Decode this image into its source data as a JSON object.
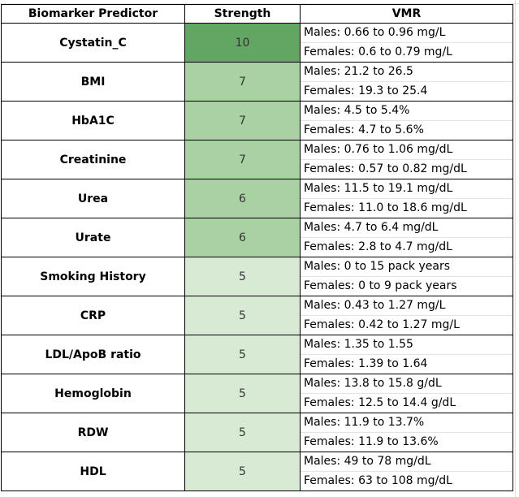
{
  "table": {
    "headers": {
      "predictor": "Biomarker Predictor",
      "strength": "Strength",
      "vmr": "VMR"
    },
    "rows": [
      {
        "predictor": "Cystatin_C",
        "strength": "10",
        "level": "high",
        "male": "Males: 0.66 to 0.96 mg/L",
        "female": "Females: 0.6 to 0.79 mg/L"
      },
      {
        "predictor": "BMI",
        "strength": "7",
        "level": "mid",
        "male": "Males: 21.2 to 26.5",
        "female": "Females: 19.3 to 25.4"
      },
      {
        "predictor": "HbA1C",
        "strength": "7",
        "level": "mid",
        "male": "Males: 4.5 to 5.4%",
        "female": "Females: 4.7 to 5.6%"
      },
      {
        "predictor": "Creatinine",
        "strength": "7",
        "level": "mid",
        "male": "Males: 0.76 to 1.06 mg/dL",
        "female": "Females: 0.57 to 0.82 mg/dL"
      },
      {
        "predictor": "Urea",
        "strength": "6",
        "level": "mid",
        "male": "Males: 11.5 to 19.1 mg/dL",
        "female": "Females: 11.0 to 18.6 mg/dL"
      },
      {
        "predictor": "Urate",
        "strength": "6",
        "level": "mid",
        "male": "Males: 4.7 to 6.4 mg/dL",
        "female": "Females: 2.8 to 4.7 mg/dL"
      },
      {
        "predictor": "Smoking History",
        "strength": "5",
        "level": "low",
        "male": "Males: 0 to 15 pack years",
        "female": "Females: 0 to 9 pack years"
      },
      {
        "predictor": "CRP",
        "strength": "5",
        "level": "low",
        "male": "Males: 0.43 to 1.27 mg/L",
        "female": "Females: 0.42 to 1.27 mg/L"
      },
      {
        "predictor": "LDL/ApoB ratio",
        "strength": "5",
        "level": "low",
        "male": "Males: 1.35 to 1.55",
        "female": "Females: 1.39 to 1.64"
      },
      {
        "predictor": "Hemoglobin",
        "strength": "5",
        "level": "low",
        "male": "Males: 13.8 to 15.8 g/dL",
        "female": "Females: 12.5 to 14.4 g/dL"
      },
      {
        "predictor": "RDW",
        "strength": "5",
        "level": "low",
        "male": "Males: 11.9 to 13.7%",
        "female": "Females: 11.9 to 13.6%"
      },
      {
        "predictor": "HDL",
        "strength": "5",
        "level": "low",
        "male": "Males: 49 to 78 mg/dL",
        "female": "Females: 63 to 108 mg/dL"
      }
    ]
  },
  "colors": {
    "strength_high": "#63a562",
    "strength_mid": "#a9d1a3",
    "strength_low": "#d8ead3",
    "border": "#000000",
    "gridline": "#e2e2e2"
  }
}
